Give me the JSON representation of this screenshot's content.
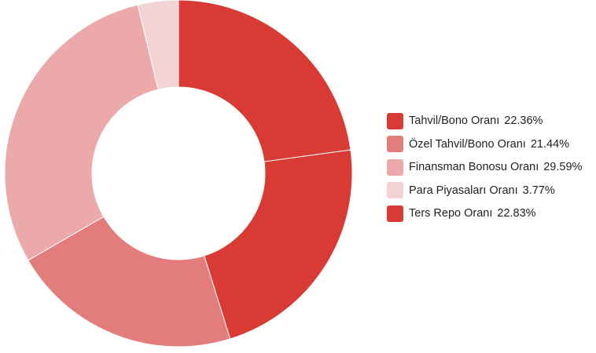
{
  "chart_data": {
    "type": "pie",
    "donut": true,
    "legend_position": "right",
    "slices": [
      {
        "label": "Tahvil/Bono Oranı",
        "value": 22.36,
        "value_label": "22.36%",
        "color": "#d93a34"
      },
      {
        "label": "Özel Tahvil/Bono Oranı",
        "value": 21.44,
        "value_label": "21.44%",
        "color": "#e37d7c"
      },
      {
        "label": "Finansman Bonosu Oranı",
        "value": 29.59,
        "value_label": "29.59%",
        "color": "#eba9aa"
      },
      {
        "label": "Para Piyasaları Oranı",
        "value": 3.77,
        "value_label": "3.77%",
        "color": "#f4d3d4"
      },
      {
        "label": "Ters Repo Oranı",
        "value": 22.83,
        "value_label": "22.83%",
        "color": "#d93a34"
      }
    ]
  }
}
